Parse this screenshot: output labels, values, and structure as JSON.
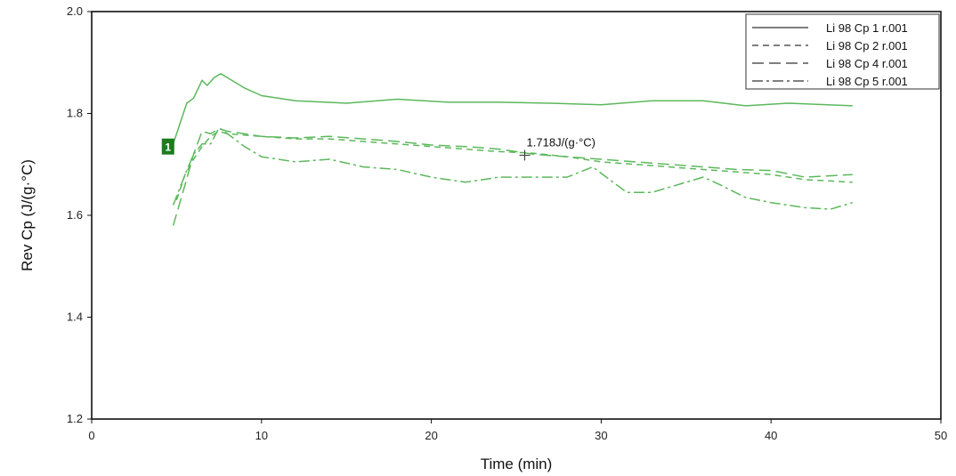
{
  "chart_data": {
    "type": "line",
    "xlabel": "Time (min)",
    "ylabel": "Rev Cp (J/(g·°C)",
    "xlim": [
      0,
      50
    ],
    "ylim": [
      1.2,
      2.0
    ],
    "x_ticks": [
      "0",
      "10",
      "20",
      "30",
      "40",
      "50"
    ],
    "y_ticks": [
      "1.2",
      "1.4",
      "1.6",
      "1.8",
      "2.0"
    ],
    "grid": false,
    "legend_position": "top-right",
    "line_color": "#5cb85c",
    "series": [
      {
        "name": "Li 98 Cp 1 r.001",
        "dash": "solid",
        "x": [
          4.8,
          5.2,
          5.6,
          6.0,
          6.5,
          6.8,
          7.2,
          7.6,
          8.0,
          9.0,
          10.0,
          12.0,
          15.0,
          18.0,
          21.0,
          24.0,
          27.0,
          30.0,
          33.0,
          36.0,
          38.5,
          41.0,
          44.8
        ],
        "y": [
          1.74,
          1.78,
          1.82,
          1.83,
          1.865,
          1.855,
          1.87,
          1.878,
          1.87,
          1.85,
          1.835,
          1.825,
          1.82,
          1.828,
          1.822,
          1.822,
          1.82,
          1.817,
          1.825,
          1.825,
          1.815,
          1.82,
          1.815
        ]
      },
      {
        "name": "Li 98 Cp 2 r.001",
        "dash": "short-dash",
        "x": [
          5.0,
          5.5,
          6.0,
          6.5,
          7.0,
          7.5,
          8.0,
          10.0,
          12.0,
          14.0,
          16.0,
          18.0,
          20.0,
          22.0,
          24.0,
          26.0,
          28.0,
          30.0,
          32.0,
          34.0,
          36.0,
          38.0,
          40.0,
          42.0,
          44.8
        ],
        "y": [
          1.63,
          1.68,
          1.71,
          1.735,
          1.755,
          1.765,
          1.76,
          1.755,
          1.75,
          1.75,
          1.745,
          1.74,
          1.735,
          1.73,
          1.725,
          1.722,
          1.715,
          1.705,
          1.7,
          1.695,
          1.69,
          1.685,
          1.68,
          1.67,
          1.665
        ]
      },
      {
        "name": "Li 98 Cp 4 r.001",
        "dash": "long-dash",
        "x": [
          4.8,
          5.5,
          6.0,
          6.5,
          7.0,
          7.5,
          8.0,
          10.0,
          12.0,
          14.0,
          16.0,
          18.0,
          20.0,
          22.0,
          24.0,
          26.0,
          28.0,
          30.0,
          32.0,
          34.0,
          36.0,
          38.0,
          40.0,
          42.0,
          44.8
        ],
        "y": [
          1.58,
          1.66,
          1.72,
          1.765,
          1.76,
          1.77,
          1.765,
          1.755,
          1.752,
          1.755,
          1.75,
          1.745,
          1.738,
          1.735,
          1.73,
          1.72,
          1.715,
          1.71,
          1.705,
          1.7,
          1.695,
          1.69,
          1.688,
          1.675,
          1.68
        ]
      },
      {
        "name": "Li 98 Cp 5 r.001",
        "dash": "dash-dot",
        "x": [
          4.8,
          5.5,
          6.0,
          6.5,
          7.0,
          7.5,
          8.0,
          9.0,
          10.0,
          12.0,
          14.0,
          16.0,
          18.0,
          20.0,
          22.0,
          24.0,
          26.0,
          28.0,
          29.5,
          30.5,
          31.5,
          33.0,
          35.0,
          36.0,
          37.0,
          38.5,
          40.0,
          42.0,
          43.5,
          44.8
        ],
        "y": [
          1.62,
          1.68,
          1.72,
          1.74,
          1.74,
          1.772,
          1.76,
          1.735,
          1.715,
          1.705,
          1.71,
          1.695,
          1.69,
          1.675,
          1.665,
          1.675,
          1.675,
          1.675,
          1.695,
          1.67,
          1.645,
          1.645,
          1.665,
          1.675,
          1.66,
          1.635,
          1.625,
          1.615,
          1.612,
          1.625
        ]
      }
    ],
    "annotations": [
      {
        "text": "1.718J/(g·°C)",
        "x": 25.5,
        "y": 1.718
      }
    ],
    "markers": [
      {
        "label": "1",
        "x": 4.6,
        "y": 1.735
      }
    ]
  }
}
